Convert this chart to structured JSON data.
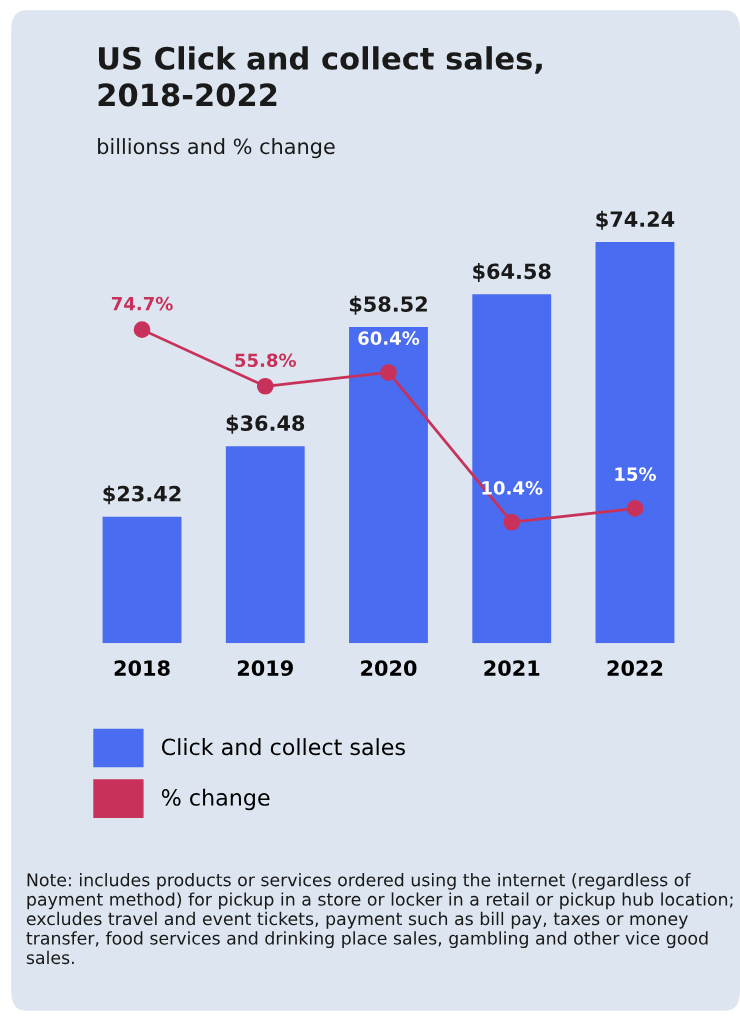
{
  "chart_data": {
    "type": "bar",
    "title": "US Click and collect sales,\n2018-2022",
    "subtitle": "billionss and % change",
    "categories": [
      "2018",
      "2019",
      "2020",
      "2021",
      "2022"
    ],
    "series": [
      {
        "name": "Click and collect sales",
        "color": "#4a6cf0",
        "values": [
          23.42,
          36.48,
          58.52,
          64.58,
          74.24
        ],
        "value_labels": [
          "$23.42",
          "$36.48",
          "$58.52",
          "$64.58",
          "$74.24"
        ]
      },
      {
        "name": "% change",
        "type": "line",
        "axis": "y2",
        "color": "#c8325a",
        "values": [
          74.7,
          55.8,
          60.4,
          10.4,
          15
        ],
        "value_labels": [
          "74.7%",
          "55.8%",
          "60.4%",
          "10.4%",
          "15%"
        ]
      }
    ],
    "marker": "circle",
    "line_style": "solid",
    "grid": false,
    "legend": "bottom",
    "annotations": [
      "Note: includes products or services ordered using the internet (regardless of payment method) for pickup in a store or locker in a retail or pickup hub location; excludes travel and event tickets, payment such as bill pay, taxes or money transfer, food services and drinking place sales, gambling and other vice good sales."
    ]
  }
}
